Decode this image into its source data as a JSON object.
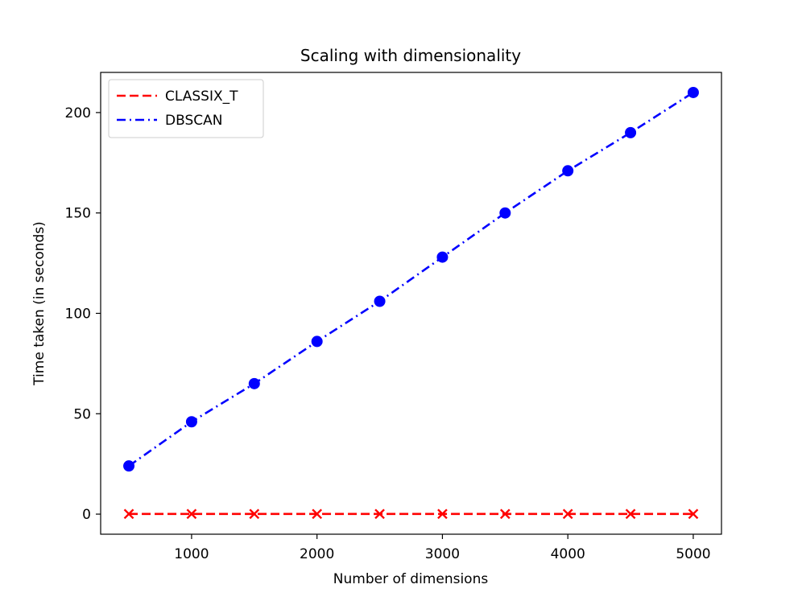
{
  "chart_data": {
    "type": "line",
    "title": "Scaling with dimensionality",
    "xlabel": "Number of dimensions",
    "ylabel": "Time taken (in seconds)",
    "xlim": [
      275,
      5225
    ],
    "ylim": [
      -10,
      220
    ],
    "xticks": [
      1000,
      2000,
      3000,
      4000,
      5000
    ],
    "yticks": [
      0,
      50,
      100,
      150,
      200
    ],
    "grid": false,
    "legend_position": "upper-left",
    "x": [
      500,
      1000,
      1500,
      2000,
      2500,
      3000,
      3500,
      4000,
      4500,
      5000
    ],
    "series": [
      {
        "name": "CLASSIX_T",
        "values": [
          0.1,
          0.1,
          0.1,
          0.1,
          0.1,
          0.1,
          0.1,
          0.1,
          0.1,
          0.1
        ],
        "color": "#ff0000",
        "line_style": "dashed",
        "marker": "x"
      },
      {
        "name": "DBSCAN",
        "values": [
          24,
          46,
          65,
          86,
          106,
          128,
          150,
          171,
          190,
          210
        ],
        "color": "#0000ff",
        "line_style": "dash-dot",
        "marker": "circle"
      }
    ]
  }
}
